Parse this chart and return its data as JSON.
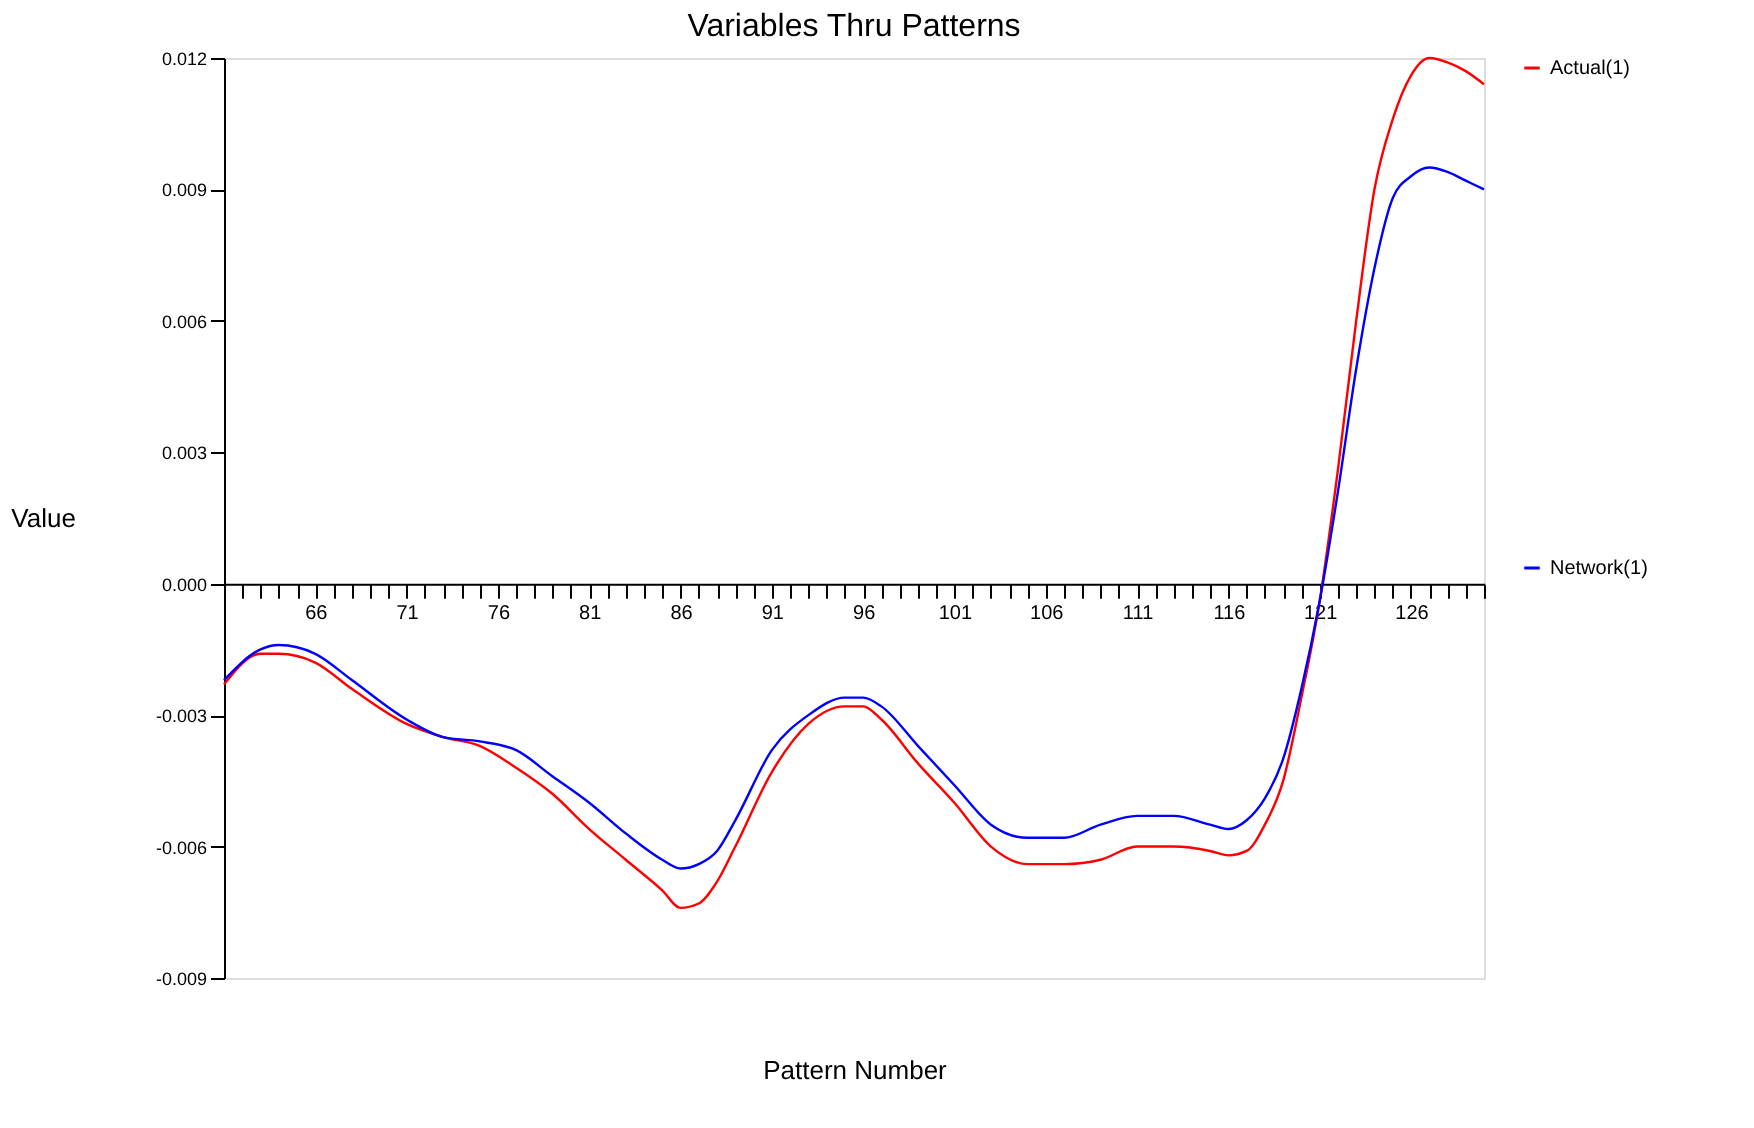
{
  "chart_data": {
    "type": "line",
    "title": "Variables Thru Patterns",
    "xlabel": "Pattern Number",
    "ylabel": "Value",
    "x": [
      61,
      63,
      64,
      66,
      68,
      71,
      73,
      75,
      77,
      79,
      81,
      83,
      85,
      86,
      87,
      88,
      89,
      91,
      93,
      95,
      96,
      97,
      99,
      101,
      103,
      105,
      107,
      109,
      111,
      113,
      115,
      116,
      117,
      118,
      119,
      120,
      121,
      122,
      123,
      124,
      125,
      126,
      127,
      128,
      129,
      130
    ],
    "series": [
      {
        "name": "Actual(1)",
        "color": "#ff0000",
        "values": [
          -0.0023,
          -0.0016,
          -0.0016,
          -0.0018,
          -0.0024,
          -0.0032,
          -0.0035,
          -0.0037,
          -0.0042,
          -0.0048,
          -0.0056,
          -0.0063,
          -0.007,
          -0.0074,
          -0.0073,
          -0.0068,
          -0.006,
          -0.0043,
          -0.0032,
          -0.0028,
          -0.0028,
          -0.0031,
          -0.0041,
          -0.005,
          -0.006,
          -0.0064,
          -0.0064,
          -0.0063,
          -0.006,
          -0.006,
          -0.0061,
          -0.0062,
          -0.0061,
          -0.0055,
          -0.0045,
          -0.0026,
          -0.0004,
          0.0026,
          0.006,
          0.009,
          0.0106,
          0.0116,
          0.012,
          0.0119,
          0.0117,
          0.0114
        ]
      },
      {
        "name": "Network(1)",
        "color": "#0000ff",
        "values": [
          -0.0022,
          -0.0015,
          -0.0014,
          -0.0016,
          -0.0022,
          -0.0031,
          -0.0035,
          -0.0036,
          -0.0038,
          -0.0044,
          -0.005,
          -0.0057,
          -0.0063,
          -0.0065,
          -0.0064,
          -0.0061,
          -0.0054,
          -0.0038,
          -0.003,
          -0.0026,
          -0.0026,
          -0.0028,
          -0.0037,
          -0.0046,
          -0.0055,
          -0.0058,
          -0.0058,
          -0.0055,
          -0.0053,
          -0.0053,
          -0.0055,
          -0.0056,
          -0.0054,
          -0.0049,
          -0.004,
          -0.0024,
          -0.0004,
          0.0021,
          0.0049,
          0.0072,
          0.0088,
          0.0093,
          0.0095,
          0.0094,
          0.0092,
          0.009
        ]
      }
    ],
    "xlim": [
      61,
      130
    ],
    "xticks": [
      {
        "value": 61,
        "label": null
      },
      {
        "value": 62,
        "label": null
      },
      {
        "value": 63,
        "label": null
      },
      {
        "value": 64,
        "label": null
      },
      {
        "value": 65,
        "label": null
      },
      66,
      {
        "value": 67,
        "label": null
      },
      {
        "value": 68,
        "label": null
      },
      {
        "value": 69,
        "label": null
      },
      {
        "value": 70,
        "label": null
      },
      71,
      {
        "value": 72,
        "label": null
      },
      {
        "value": 73,
        "label": null
      },
      {
        "value": 74,
        "label": null
      },
      {
        "value": 75,
        "label": null
      },
      76,
      {
        "value": 77,
        "label": null
      },
      {
        "value": 78,
        "label": null
      },
      {
        "value": 79,
        "label": null
      },
      {
        "value": 80,
        "label": null
      },
      81,
      {
        "value": 82,
        "label": null
      },
      {
        "value": 83,
        "label": null
      },
      {
        "value": 84,
        "label": null
      },
      {
        "value": 85,
        "label": null
      },
      86,
      {
        "value": 87,
        "label": null
      },
      {
        "value": 88,
        "label": null
      },
      {
        "value": 89,
        "label": null
      },
      {
        "value": 90,
        "label": null
      },
      91,
      {
        "value": 92,
        "label": null
      },
      {
        "value": 93,
        "label": null
      },
      {
        "value": 94,
        "label": null
      },
      {
        "value": 95,
        "label": null
      },
      96,
      {
        "value": 97,
        "label": null
      },
      {
        "value": 98,
        "label": null
      },
      {
        "value": 99,
        "label": null
      },
      {
        "value": 100,
        "label": null
      },
      101,
      {
        "value": 102,
        "label": null
      },
      {
        "value": 103,
        "label": null
      },
      {
        "value": 104,
        "label": null
      },
      {
        "value": 105,
        "label": null
      },
      106,
      {
        "value": 107,
        "label": null
      },
      {
        "value": 108,
        "label": null
      },
      {
        "value": 109,
        "label": null
      },
      {
        "value": 110,
        "label": null
      },
      111,
      {
        "value": 112,
        "label": null
      },
      {
        "value": 113,
        "label": null
      },
      {
        "value": 114,
        "label": null
      },
      {
        "value": 115,
        "label": null
      },
      116,
      {
        "value": 117,
        "label": null
      },
      {
        "value": 118,
        "label": null
      },
      {
        "value": 119,
        "label": null
      },
      {
        "value": 120,
        "label": null
      },
      121,
      {
        "value": 122,
        "label": null
      },
      {
        "value": 123,
        "label": null
      },
      {
        "value": 124,
        "label": null
      },
      {
        "value": 125,
        "label": null
      },
      126,
      {
        "value": 127,
        "label": null
      },
      {
        "value": 128,
        "label": null
      },
      {
        "value": 129,
        "label": null
      },
      {
        "value": 130,
        "label": null
      }
    ],
    "ylim": [
      -0.009,
      0.012
    ],
    "yticks": [
      -0.009,
      -0.006,
      -0.003,
      {
        "value": 0,
        "label": "0.000"
      },
      0.003,
      0.006,
      0.009,
      0.012
    ],
    "grid": false,
    "legend": "right",
    "marker": "none",
    "line_style": "solid"
  }
}
